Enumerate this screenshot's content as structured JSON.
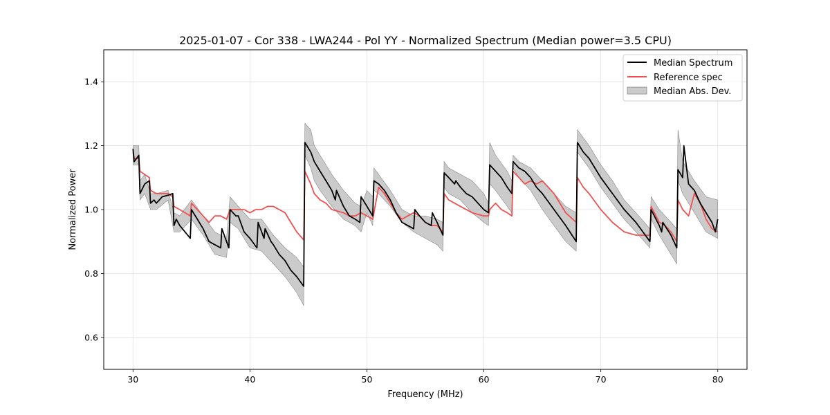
{
  "chart_data": {
    "type": "line",
    "title": "2025-01-07 - Cor 338 - LWA244 - Pol YY - Normalized Spectrum (Median power=3.5 CPU)",
    "xlabel": "Frequency (MHz)",
    "ylabel": "Normalized Power",
    "xlim": [
      27.5,
      82.5
    ],
    "ylim": [
      0.5,
      1.5
    ],
    "xticks": [
      30,
      40,
      50,
      60,
      70,
      80
    ],
    "yticks": [
      0.6,
      0.8,
      1.0,
      1.2,
      1.4
    ],
    "xtick_labels": [
      "30",
      "40",
      "50",
      "60",
      "70",
      "80"
    ],
    "ytick_labels": [
      "0.6",
      "0.8",
      "1.0",
      "1.2",
      "1.4"
    ],
    "grid": true,
    "legend_position": "top-right",
    "colors": {
      "median": "#000000",
      "reference": "#f05050",
      "mad": "#a8a8a8"
    },
    "series": [
      {
        "name": "Median Spectrum",
        "x": [
          30.0,
          30.1,
          30.5,
          30.6,
          31.0,
          31.4,
          31.5,
          31.8,
          32.0,
          32.5,
          33.0,
          33.4,
          33.5,
          33.7,
          34.0,
          34.9,
          35.0,
          35.5,
          36.0,
          36.5,
          37.0,
          37.5,
          37.6,
          38.2,
          38.3,
          38.8,
          39.0,
          39.5,
          40.0,
          40.6,
          40.7,
          41.2,
          41.3,
          41.8,
          42.0,
          42.5,
          43.0,
          43.5,
          44.0,
          44.6,
          44.7,
          45.2,
          45.5,
          46.0,
          46.5,
          47.0,
          47.3,
          47.4,
          48.0,
          48.5,
          49.0,
          49.4,
          49.5,
          50.0,
          50.5,
          50.6,
          51.0,
          51.5,
          52.0,
          52.5,
          53.0,
          53.5,
          54.0,
          54.1,
          54.5,
          55.0,
          55.5,
          55.6,
          56.0,
          56.5,
          56.6,
          57.0,
          57.5,
          57.6,
          58.0,
          58.5,
          59.0,
          59.5,
          60.0,
          60.4,
          60.5,
          61.0,
          61.5,
          62.0,
          62.4,
          62.5,
          63.0,
          63.5,
          64.0,
          64.5,
          65.0,
          66.0,
          67.0,
          67.9,
          68.0,
          68.5,
          69.0,
          70.0,
          71.0,
          72.0,
          73.0,
          74.2,
          74.3,
          75.0,
          75.2,
          75.3,
          76.0,
          76.5,
          76.6,
          77.0,
          77.1,
          77.5,
          78.0,
          78.5,
          79.0,
          79.5,
          79.8,
          80.0
        ],
        "values": [
          1.19,
          1.15,
          1.17,
          1.05,
          1.08,
          1.09,
          1.02,
          1.03,
          1.02,
          1.04,
          1.045,
          1.05,
          0.95,
          0.97,
          0.95,
          0.91,
          1.0,
          0.97,
          0.94,
          0.9,
          0.89,
          0.88,
          0.94,
          0.88,
          1.0,
          0.98,
          0.98,
          0.93,
          0.91,
          0.88,
          0.96,
          0.91,
          0.94,
          0.9,
          0.89,
          0.86,
          0.84,
          0.81,
          0.79,
          0.76,
          1.21,
          1.18,
          1.15,
          1.12,
          1.09,
          1.06,
          1.03,
          1.06,
          1.01,
          0.98,
          0.97,
          0.96,
          1.04,
          1.01,
          0.98,
          1.09,
          1.08,
          1.06,
          1.03,
          0.99,
          0.96,
          0.95,
          0.94,
          1.0,
          0.98,
          0.96,
          0.95,
          0.99,
          0.96,
          0.92,
          1.115,
          1.1,
          1.08,
          1.09,
          1.07,
          1.05,
          1.04,
          1.02,
          1.0,
          0.99,
          1.14,
          1.12,
          1.1,
          1.07,
          1.05,
          1.15,
          1.13,
          1.12,
          1.1,
          1.07,
          1.05,
          1.0,
          0.95,
          0.9,
          1.21,
          1.18,
          1.16,
          1.1,
          1.05,
          1.0,
          0.96,
          0.9,
          1.0,
          0.95,
          0.93,
          0.96,
          0.92,
          0.88,
          1.125,
          1.1,
          1.2,
          1.08,
          1.06,
          1.02,
          0.99,
          0.96,
          0.93,
          0.97
        ]
      },
      {
        "name": "Reference spec",
        "x": [
          30.0,
          30.1,
          30.5,
          30.6,
          31.0,
          31.4,
          31.5,
          32.0,
          32.5,
          33.0,
          33.4,
          33.5,
          34.0,
          34.9,
          35.0,
          35.5,
          36.0,
          36.5,
          37.0,
          37.5,
          38.0,
          38.3,
          38.8,
          39.5,
          40.0,
          40.5,
          41.0,
          41.5,
          42.0,
          42.5,
          43.0,
          43.5,
          44.0,
          44.6,
          44.7,
          45.2,
          45.5,
          46.0,
          46.5,
          47.0,
          48.0,
          48.5,
          49.0,
          49.5,
          50.0,
          50.5,
          51.0,
          51.5,
          52.0,
          52.5,
          53.0,
          53.5,
          54.0,
          54.5,
          55.0,
          55.5,
          56.0,
          56.5,
          56.6,
          57.0,
          58.0,
          59.0,
          60.0,
          60.4,
          60.5,
          61.0,
          61.5,
          62.0,
          62.4,
          62.5,
          63.0,
          63.5,
          64.0,
          64.5,
          65.0,
          66.0,
          67.0,
          67.9,
          68.0,
          68.5,
          69.0,
          70.0,
          71.0,
          72.0,
          73.0,
          74.2,
          74.3,
          75.0,
          75.5,
          76.0,
          76.5,
          76.6,
          77.0,
          77.5,
          78.0,
          78.5,
          79.0,
          79.5,
          80.0
        ],
        "values": [
          1.18,
          1.16,
          1.16,
          1.12,
          1.11,
          1.1,
          1.06,
          1.05,
          1.05,
          1.05,
          1.04,
          1.01,
          1.0,
          0.98,
          1.02,
          1.0,
          0.98,
          0.96,
          0.98,
          0.98,
          0.97,
          1.0,
          1.0,
          1.0,
          0.99,
          1.0,
          1.0,
          1.01,
          1.01,
          1.0,
          0.99,
          0.96,
          0.93,
          0.905,
          1.12,
          1.08,
          1.05,
          1.03,
          1.02,
          1.0,
          0.99,
          0.98,
          0.98,
          0.99,
          0.98,
          0.97,
          1.07,
          1.05,
          1.02,
          0.99,
          0.97,
          0.98,
          0.99,
          0.98,
          0.96,
          0.95,
          0.95,
          0.93,
          1.05,
          1.03,
          1.01,
          0.99,
          0.98,
          0.98,
          1.0,
          1.02,
          1.0,
          0.99,
          0.98,
          1.12,
          1.1,
          1.08,
          1.09,
          1.08,
          1.09,
          1.05,
          0.99,
          0.96,
          1.1,
          1.07,
          1.05,
          1.0,
          0.96,
          0.93,
          0.92,
          0.92,
          1.01,
          0.96,
          0.95,
          0.93,
          0.9,
          1.03,
          1.0,
          0.98,
          1.05,
          1.02,
          0.97,
          0.94,
          0.93
        ]
      },
      {
        "name": "Median Abs. Dev.",
        "type": "band",
        "note": "shaded band around the median spectrum",
        "x": [
          30.0,
          30.5,
          30.6,
          31.0,
          31.5,
          32.0,
          33.0,
          33.5,
          34.0,
          35.0,
          36.0,
          37.0,
          38.0,
          38.3,
          39.0,
          40.0,
          41.0,
          42.0,
          43.0,
          44.0,
          44.6,
          44.7,
          45.2,
          45.5,
          46.0,
          47.0,
          48.0,
          49.0,
          49.5,
          50.0,
          50.5,
          50.6,
          51.0,
          52.0,
          53.0,
          54.0,
          55.0,
          56.0,
          56.5,
          56.6,
          57.0,
          58.0,
          59.0,
          60.0,
          60.4,
          60.5,
          61.0,
          62.0,
          62.4,
          62.5,
          63.0,
          64.0,
          65.0,
          66.0,
          67.0,
          67.9,
          68.0,
          69.0,
          70.0,
          71.0,
          72.0,
          73.0,
          74.2,
          74.3,
          75.0,
          76.0,
          76.5,
          76.6,
          77.0,
          78.0,
          79.0,
          80.0
        ],
        "lower": [
          1.14,
          1.14,
          1.03,
          1.05,
          1.0,
          1.0,
          1.03,
          0.93,
          0.93,
          0.97,
          0.92,
          0.86,
          0.85,
          0.96,
          0.94,
          0.88,
          0.87,
          0.83,
          0.79,
          0.74,
          0.7,
          1.17,
          1.13,
          1.09,
          1.06,
          1.01,
          0.97,
          0.95,
          0.93,
          0.99,
          0.95,
          1.06,
          1.05,
          1.01,
          0.96,
          0.93,
          0.91,
          0.89,
          0.87,
          1.07,
          1.05,
          1.03,
          0.99,
          0.96,
          0.95,
          1.08,
          1.06,
          1.01,
          0.99,
          1.13,
          1.1,
          1.06,
          1.0,
          0.95,
          0.9,
          0.87,
          1.18,
          1.13,
          1.07,
          1.02,
          0.97,
          0.93,
          0.88,
          0.97,
          0.92,
          0.86,
          0.83,
          1.09,
          1.05,
          0.99,
          0.93,
          0.91
        ],
        "upper": [
          1.2,
          1.2,
          1.09,
          1.11,
          1.05,
          1.05,
          1.06,
          0.99,
          0.98,
          1.03,
          0.98,
          0.93,
          0.91,
          1.04,
          1.01,
          0.97,
          0.97,
          0.92,
          0.88,
          0.85,
          0.82,
          1.27,
          1.25,
          1.2,
          1.17,
          1.11,
          1.06,
          1.02,
          1.01,
          1.06,
          1.04,
          1.13,
          1.11,
          1.06,
          1.0,
          0.98,
          0.98,
          0.97,
          0.96,
          1.15,
          1.13,
          1.11,
          1.09,
          1.05,
          1.02,
          1.21,
          1.17,
          1.12,
          1.09,
          1.17,
          1.15,
          1.13,
          1.09,
          1.05,
          1.01,
          0.99,
          1.25,
          1.2,
          1.14,
          1.09,
          1.03,
          0.99,
          0.94,
          1.04,
          1.0,
          0.96,
          0.94,
          1.25,
          1.15,
          1.09,
          1.04,
          1.03
        ]
      }
    ]
  }
}
